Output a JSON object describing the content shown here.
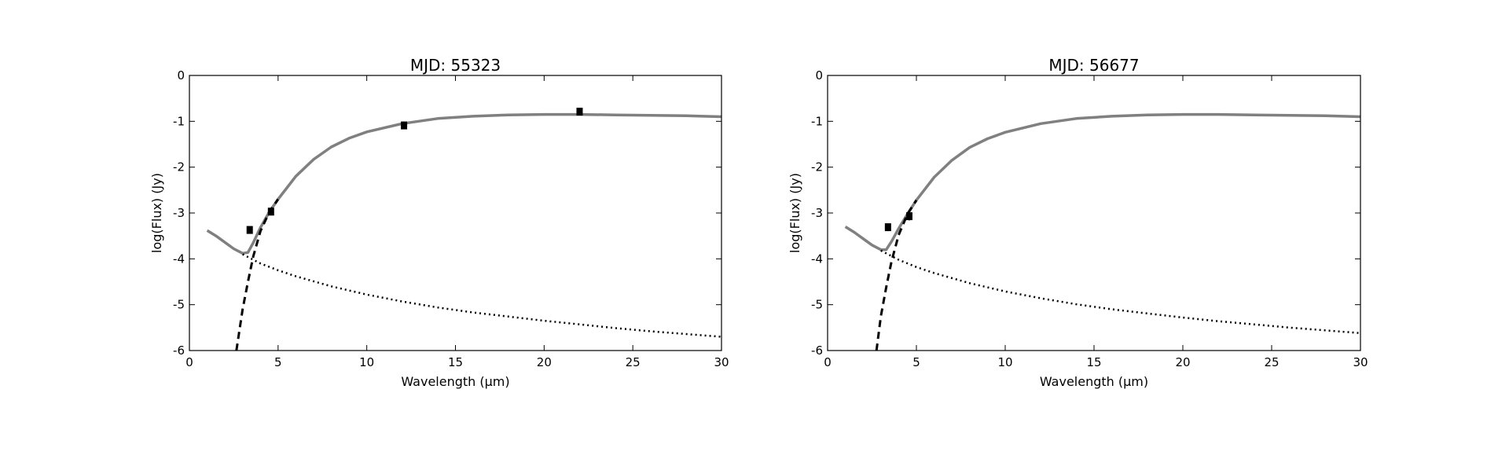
{
  "figure": {
    "description_colors": {
      "background": "#ffffff",
      "total_model": "#808080",
      "component": "#000000",
      "points": "#000000"
    }
  },
  "chart_data": [
    {
      "type": "line",
      "title": "MJD: 55323",
      "xlabel": "Wavelength (μm)",
      "ylabel": "log(Flux) (Jy)",
      "xlim": [
        0,
        30
      ],
      "ylim": [
        -6,
        0
      ],
      "xticks": [
        0,
        5,
        10,
        15,
        20,
        25,
        30
      ],
      "xtick_labels": [
        "0",
        "5",
        "10",
        "15",
        "20",
        "25",
        "30"
      ],
      "yticks": [
        0,
        -1,
        -2,
        -3,
        -4,
        -5,
        -6
      ],
      "ytick_labels": [
        "0",
        "-1",
        "-2",
        "-3",
        "-4",
        "-5",
        "-6"
      ],
      "grid": false,
      "series": [
        {
          "style": "solid",
          "color": "#808080",
          "x": [
            1.0,
            1.5,
            2.0,
            2.5,
            3.0,
            3.3,
            3.6,
            4.0,
            4.5,
            5.0,
            6.0,
            7.0,
            8.0,
            9.0,
            10.0,
            12.0,
            14.0,
            16.0,
            18.0,
            20.0,
            22.0,
            24.0,
            26.0,
            28.0,
            30.0
          ],
          "y": [
            -3.38,
            -3.5,
            -3.64,
            -3.78,
            -3.88,
            -3.86,
            -3.65,
            -3.32,
            -2.98,
            -2.7,
            -2.2,
            -1.83,
            -1.56,
            -1.37,
            -1.23,
            -1.05,
            -0.94,
            -0.89,
            -0.86,
            -0.85,
            -0.85,
            -0.86,
            -0.87,
            -0.88,
            -0.9
          ]
        },
        {
          "style": "dashed",
          "color": "#000000",
          "x": [
            2.65,
            3.0,
            3.3,
            3.6,
            4.0,
            4.5,
            5.0
          ],
          "y": [
            -6.0,
            -5.1,
            -4.5,
            -3.95,
            -3.4,
            -2.98,
            -2.7
          ]
        },
        {
          "style": "dotted",
          "color": "#000000",
          "x": [
            3.0,
            4.0,
            5.0,
            6.0,
            8.0,
            10.0,
            12.0,
            14.0,
            16.0,
            18.0,
            20.0,
            22.0,
            24.0,
            26.0,
            28.0,
            30.0
          ],
          "y": [
            -3.9,
            -4.1,
            -4.25,
            -4.38,
            -4.6,
            -4.78,
            -4.93,
            -5.06,
            -5.17,
            -5.26,
            -5.35,
            -5.43,
            -5.51,
            -5.58,
            -5.64,
            -5.7
          ]
        }
      ],
      "points": {
        "x": [
          3.4,
          4.6,
          12.1,
          22.0
        ],
        "y": [
          -3.37,
          -2.97,
          -1.09,
          -0.79
        ],
        "yerr": [
          0.08,
          0.08,
          0.08,
          0.07
        ]
      }
    },
    {
      "type": "line",
      "title": "MJD: 56677",
      "xlabel": "Wavelength (μm)",
      "ylabel": "log(Flux) (Jy)",
      "xlim": [
        0,
        30
      ],
      "ylim": [
        -6,
        0
      ],
      "xticks": [
        0,
        5,
        10,
        15,
        20,
        25,
        30
      ],
      "xtick_labels": [
        "0",
        "5",
        "10",
        "15",
        "20",
        "25",
        "30"
      ],
      "yticks": [
        0,
        -1,
        -2,
        -3,
        -4,
        -5,
        -6
      ],
      "ytick_labels": [
        "0",
        "-1",
        "-2",
        "-3",
        "-4",
        "-5",
        "-6"
      ],
      "grid": false,
      "series": [
        {
          "style": "solid",
          "color": "#808080",
          "x": [
            1.0,
            1.5,
            2.0,
            2.5,
            3.0,
            3.3,
            3.6,
            4.0,
            4.5,
            5.0,
            6.0,
            7.0,
            8.0,
            9.0,
            10.0,
            12.0,
            14.0,
            16.0,
            18.0,
            20.0,
            22.0,
            24.0,
            26.0,
            28.0,
            30.0
          ],
          "y": [
            -3.3,
            -3.42,
            -3.56,
            -3.7,
            -3.8,
            -3.8,
            -3.62,
            -3.34,
            -3.02,
            -2.72,
            -2.22,
            -1.85,
            -1.57,
            -1.38,
            -1.24,
            -1.05,
            -0.94,
            -0.89,
            -0.86,
            -0.85,
            -0.85,
            -0.86,
            -0.87,
            -0.88,
            -0.9
          ]
        },
        {
          "style": "dashed",
          "color": "#000000",
          "x": [
            2.75,
            3.0,
            3.3,
            3.6,
            4.0,
            4.5,
            5.0
          ],
          "y": [
            -6.0,
            -5.25,
            -4.62,
            -4.05,
            -3.48,
            -3.02,
            -2.72
          ]
        },
        {
          "style": "dotted",
          "color": "#000000",
          "x": [
            3.0,
            4.0,
            5.0,
            6.0,
            8.0,
            10.0,
            12.0,
            14.0,
            16.0,
            18.0,
            20.0,
            22.0,
            24.0,
            26.0,
            28.0,
            30.0
          ],
          "y": [
            -3.82,
            -4.02,
            -4.18,
            -4.31,
            -4.53,
            -4.71,
            -4.86,
            -4.99,
            -5.1,
            -5.19,
            -5.28,
            -5.36,
            -5.43,
            -5.5,
            -5.56,
            -5.62
          ]
        }
      ],
      "points": {
        "x": [
          3.4,
          4.6
        ],
        "y": [
          -3.31,
          -3.07
        ],
        "yerr": [
          0.08,
          0.09
        ]
      }
    }
  ]
}
